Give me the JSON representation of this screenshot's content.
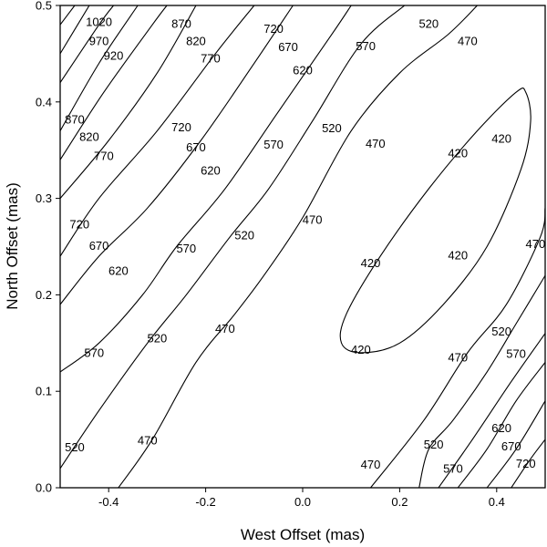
{
  "chart_data": {
    "type": "contour",
    "title": "",
    "xlabel": "West Offset (mas)",
    "ylabel": "North Offset (mas)",
    "xlim": [
      -0.5,
      0.5
    ],
    "ylim": [
      0.0,
      0.5
    ],
    "x_ticks": [
      "-0.4",
      "-0.2",
      "0.0",
      "0.2",
      "0.4"
    ],
    "x_tick_values": [
      -0.4,
      -0.2,
      0.0,
      0.2,
      0.4
    ],
    "y_ticks": [
      "0.0",
      "0.1",
      "0.2",
      "0.3",
      "0.4",
      "0.5"
    ],
    "y_tick_values": [
      0.0,
      0.1,
      0.2,
      0.3,
      0.4,
      0.5
    ],
    "grid": false,
    "levels": [
      420,
      470,
      520,
      570,
      620,
      670,
      720,
      770,
      820,
      870,
      920,
      970,
      1020
    ],
    "contours": [
      {
        "level": 420,
        "closed": true,
        "points": [
          [
            0.46,
            0.41
          ],
          [
            0.47,
            0.38
          ],
          [
            0.45,
            0.33
          ],
          [
            0.38,
            0.25
          ],
          [
            0.29,
            0.19
          ],
          [
            0.2,
            0.15
          ],
          [
            0.12,
            0.14
          ],
          [
            0.08,
            0.15
          ],
          [
            0.09,
            0.18
          ],
          [
            0.16,
            0.24
          ],
          [
            0.26,
            0.31
          ],
          [
            0.36,
            0.37
          ],
          [
            0.44,
            0.41
          ],
          [
            0.46,
            0.41
          ]
        ]
      },
      {
        "level": 470,
        "points": [
          [
            -0.38,
            0.0
          ],
          [
            -0.31,
            0.05
          ],
          [
            -0.22,
            0.13
          ],
          [
            -0.14,
            0.18
          ],
          [
            -0.08,
            0.22
          ],
          [
            0.0,
            0.28
          ],
          [
            0.1,
            0.37
          ],
          [
            0.2,
            0.43
          ],
          [
            0.3,
            0.47
          ],
          [
            0.36,
            0.5
          ]
        ]
      },
      {
        "level": 470,
        "points": [
          [
            0.14,
            0.0
          ],
          [
            0.25,
            0.07
          ],
          [
            0.34,
            0.14
          ],
          [
            0.42,
            0.19
          ],
          [
            0.49,
            0.26
          ],
          [
            0.5,
            0.29
          ]
        ]
      },
      {
        "level": 520,
        "points": [
          [
            -0.5,
            0.02
          ],
          [
            -0.42,
            0.08
          ],
          [
            -0.32,
            0.15
          ],
          [
            -0.24,
            0.2
          ],
          [
            -0.15,
            0.26
          ],
          [
            -0.07,
            0.31
          ],
          [
            0.02,
            0.38
          ],
          [
            0.12,
            0.46
          ],
          [
            0.21,
            0.5
          ]
        ]
      },
      {
        "level": 520,
        "points": [
          [
            0.24,
            0.0
          ],
          [
            0.26,
            0.04
          ],
          [
            0.31,
            0.07
          ],
          [
            0.38,
            0.12
          ],
          [
            0.44,
            0.17
          ],
          [
            0.5,
            0.22
          ]
        ]
      },
      {
        "level": 570,
        "points": [
          [
            -0.5,
            0.12
          ],
          [
            -0.42,
            0.15
          ],
          [
            -0.33,
            0.2
          ],
          [
            -0.26,
            0.25
          ],
          [
            -0.16,
            0.31
          ],
          [
            -0.05,
            0.39
          ],
          [
            0.06,
            0.47
          ],
          [
            0.1,
            0.5
          ]
        ]
      },
      {
        "level": 570,
        "points": [
          [
            0.28,
            0.0
          ],
          [
            0.35,
            0.05
          ],
          [
            0.43,
            0.11
          ],
          [
            0.5,
            0.16
          ]
        ]
      },
      {
        "level": 620,
        "points": [
          [
            -0.5,
            0.19
          ],
          [
            -0.42,
            0.24
          ],
          [
            -0.32,
            0.29
          ],
          [
            -0.21,
            0.36
          ],
          [
            -0.1,
            0.44
          ],
          [
            -0.02,
            0.5
          ]
        ]
      },
      {
        "level": 620,
        "points": [
          [
            0.32,
            0.0
          ],
          [
            0.38,
            0.04
          ],
          [
            0.44,
            0.09
          ],
          [
            0.5,
            0.13
          ]
        ]
      },
      {
        "level": 670,
        "points": [
          [
            -0.5,
            0.24
          ],
          [
            -0.42,
            0.3
          ],
          [
            -0.3,
            0.37
          ],
          [
            -0.18,
            0.45
          ],
          [
            -0.1,
            0.5
          ]
        ]
      },
      {
        "level": 670,
        "points": [
          [
            0.38,
            0.0
          ],
          [
            0.44,
            0.04
          ],
          [
            0.5,
            0.09
          ]
        ]
      },
      {
        "level": 720,
        "points": [
          [
            -0.5,
            0.3
          ],
          [
            -0.4,
            0.36
          ],
          [
            -0.3,
            0.43
          ],
          [
            -0.22,
            0.5
          ]
        ]
      },
      {
        "level": 720,
        "points": [
          [
            0.43,
            0.0
          ],
          [
            0.47,
            0.03
          ],
          [
            0.5,
            0.05
          ]
        ]
      },
      {
        "level": 770,
        "points": [
          [
            -0.5,
            0.34
          ],
          [
            -0.41,
            0.41
          ],
          [
            -0.31,
            0.48
          ],
          [
            -0.28,
            0.5
          ]
        ]
      },
      {
        "level": 820,
        "points": [
          [
            -0.5,
            0.37
          ],
          [
            -0.42,
            0.44
          ],
          [
            -0.34,
            0.5
          ]
        ]
      },
      {
        "level": 870,
        "points": [
          [
            -0.5,
            0.42
          ],
          [
            -0.42,
            0.48
          ],
          [
            -0.39,
            0.5
          ]
        ]
      },
      {
        "level": 920,
        "points": [
          [
            -0.5,
            0.45
          ],
          [
            -0.44,
            0.5
          ]
        ]
      },
      {
        "level": 970,
        "points": [
          [
            -0.5,
            0.48
          ],
          [
            -0.47,
            0.5
          ]
        ]
      }
    ],
    "contour_labels": [
      {
        "text": "1020",
        "x": -0.42,
        "y": 0.483
      },
      {
        "text": "970",
        "x": -0.42,
        "y": 0.463
      },
      {
        "text": "920",
        "x": -0.39,
        "y": 0.448
      },
      {
        "text": "870",
        "x": -0.25,
        "y": 0.481
      },
      {
        "text": "820",
        "x": -0.22,
        "y": 0.463
      },
      {
        "text": "770",
        "x": -0.19,
        "y": 0.445
      },
      {
        "text": "720",
        "x": -0.06,
        "y": 0.476
      },
      {
        "text": "670",
        "x": -0.03,
        "y": 0.457
      },
      {
        "text": "620",
        "x": 0.0,
        "y": 0.433
      },
      {
        "text": "570",
        "x": 0.13,
        "y": 0.458
      },
      {
        "text": "520",
        "x": 0.26,
        "y": 0.481
      },
      {
        "text": "470",
        "x": 0.34,
        "y": 0.463
      },
      {
        "text": "870",
        "x": -0.47,
        "y": 0.382
      },
      {
        "text": "820",
        "x": -0.44,
        "y": 0.364
      },
      {
        "text": "770",
        "x": -0.41,
        "y": 0.344
      },
      {
        "text": "720",
        "x": -0.25,
        "y": 0.374
      },
      {
        "text": "670",
        "x": -0.22,
        "y": 0.353
      },
      {
        "text": "620",
        "x": -0.19,
        "y": 0.329
      },
      {
        "text": "570",
        "x": -0.06,
        "y": 0.356
      },
      {
        "text": "520",
        "x": 0.06,
        "y": 0.373
      },
      {
        "text": "470",
        "x": 0.15,
        "y": 0.357
      },
      {
        "text": "420",
        "x": 0.32,
        "y": 0.347
      },
      {
        "text": "420",
        "x": 0.41,
        "y": 0.362
      },
      {
        "text": "720",
        "x": -0.46,
        "y": 0.273
      },
      {
        "text": "670",
        "x": -0.42,
        "y": 0.251
      },
      {
        "text": "620",
        "x": -0.38,
        "y": 0.225
      },
      {
        "text": "570",
        "x": -0.24,
        "y": 0.248
      },
      {
        "text": "520",
        "x": -0.12,
        "y": 0.262
      },
      {
        "text": "470",
        "x": 0.02,
        "y": 0.278
      },
      {
        "text": "420",
        "x": 0.14,
        "y": 0.233
      },
      {
        "text": "420",
        "x": 0.32,
        "y": 0.241
      },
      {
        "text": "470",
        "x": 0.48,
        "y": 0.253
      },
      {
        "text": "570",
        "x": -0.43,
        "y": 0.14
      },
      {
        "text": "520",
        "x": -0.3,
        "y": 0.155
      },
      {
        "text": "470",
        "x": -0.16,
        "y": 0.165
      },
      {
        "text": "420",
        "x": 0.12,
        "y": 0.143
      },
      {
        "text": "520",
        "x": 0.41,
        "y": 0.162
      },
      {
        "text": "470",
        "x": 0.32,
        "y": 0.135
      },
      {
        "text": "570",
        "x": 0.44,
        "y": 0.139
      },
      {
        "text": "520",
        "x": -0.47,
        "y": 0.042
      },
      {
        "text": "470",
        "x": -0.32,
        "y": 0.049
      },
      {
        "text": "470",
        "x": 0.14,
        "y": 0.024
      },
      {
        "text": "520",
        "x": 0.27,
        "y": 0.045
      },
      {
        "text": "570",
        "x": 0.31,
        "y": 0.02
      },
      {
        "text": "620",
        "x": 0.41,
        "y": 0.062
      },
      {
        "text": "670",
        "x": 0.43,
        "y": 0.043
      },
      {
        "text": "720",
        "x": 0.46,
        "y": 0.025
      }
    ]
  }
}
